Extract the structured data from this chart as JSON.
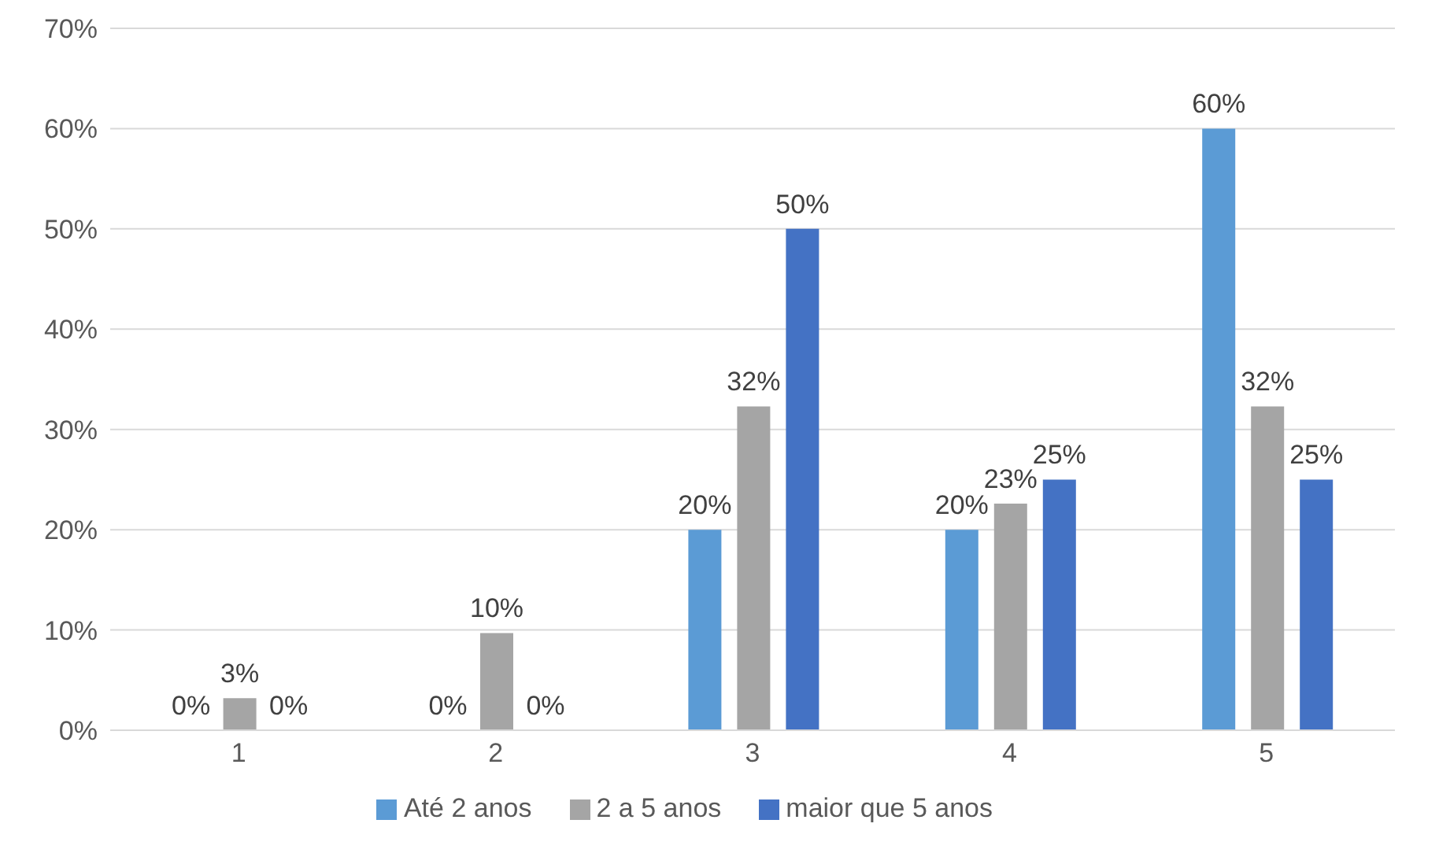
{
  "chart_data": {
    "type": "bar",
    "categories": [
      "1",
      "2",
      "3",
      "4",
      "5"
    ],
    "series": [
      {
        "name": "Até 2 anos",
        "color": "#5b9bd5",
        "values": [
          0,
          0,
          20,
          20,
          60
        ],
        "value_labels": [
          "0%",
          "0%",
          "20%",
          "20%",
          "60%"
        ]
      },
      {
        "name": "2 a 5 anos",
        "color": "#a5a5a5",
        "values": [
          3.2,
          9.7,
          32.3,
          22.6,
          32.3
        ],
        "value_labels": [
          "3%",
          "10%",
          "32%",
          "23%",
          "32%"
        ]
      },
      {
        "name": "maior que 5 anos",
        "color": "#4472c4",
        "values": [
          0,
          0,
          50,
          25,
          25
        ],
        "value_labels": [
          "0%",
          "0%",
          "50%",
          "25%",
          "25%"
        ]
      }
    ],
    "ylim": [
      0,
      70
    ],
    "yticks": [
      {
        "value": 0,
        "label": "0%"
      },
      {
        "value": 10,
        "label": "10%"
      },
      {
        "value": 20,
        "label": "20%"
      },
      {
        "value": 30,
        "label": "30%"
      },
      {
        "value": 40,
        "label": "40%"
      },
      {
        "value": 50,
        "label": "50%"
      },
      {
        "value": 60,
        "label": "60%"
      },
      {
        "value": 70,
        "label": "70%"
      }
    ],
    "grid": "y",
    "legend": "bottom"
  }
}
